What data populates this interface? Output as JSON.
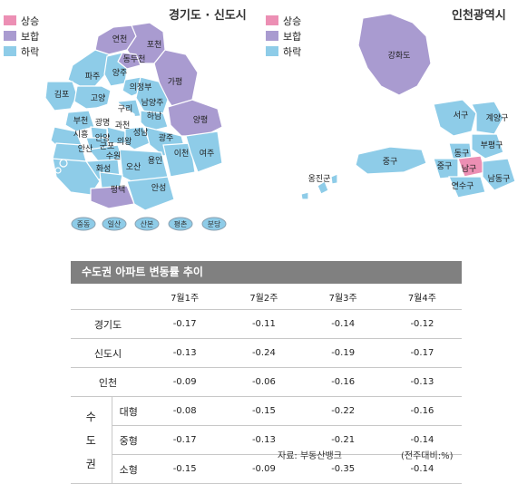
{
  "legend": {
    "items": [
      {
        "label": "상승",
        "color": "#ec8fb4"
      },
      {
        "label": "보합",
        "color": "#a99bd0"
      },
      {
        "label": "하락",
        "color": "#8ecce8"
      }
    ]
  },
  "left_map": {
    "title": "경기도 · 신도시",
    "region_labels": [
      "연천",
      "포천",
      "동두천",
      "양주",
      "파주",
      "의정부",
      "가평",
      "김포",
      "고양",
      "남양주",
      "구리",
      "하남",
      "양평",
      "부천",
      "광명",
      "과천",
      "시흥",
      "안양",
      "의왕",
      "성남",
      "광주",
      "안산",
      "군포",
      "수원",
      "용인",
      "이천",
      "여주",
      "화성",
      "오산",
      "평택",
      "안성"
    ],
    "new_towns": [
      "중동",
      "일산",
      "산본",
      "평촌",
      "분당"
    ]
  },
  "right_map": {
    "title": "인천광역시",
    "region_labels": [
      "강화도",
      "서구",
      "계양구",
      "부평구",
      "동구",
      "중구",
      "남구",
      "옹진군",
      "중구",
      "연수구",
      "남동구"
    ]
  },
  "table": {
    "title": "수도권 아파트 변동률 추이",
    "columns": [
      "7월1주",
      "7월2주",
      "7월3주",
      "7월4주"
    ],
    "rows": [
      {
        "label": "경기도",
        "values": [
          "-0.17",
          "-0.11",
          "-0.14",
          "-0.12"
        ]
      },
      {
        "label": "신도시",
        "values": [
          "-0.13",
          "-0.24",
          "-0.19",
          "-0.17"
        ]
      },
      {
        "label": "인천",
        "values": [
          "-0.09",
          "-0.06",
          "-0.16",
          "-0.13"
        ]
      }
    ],
    "group_chars": [
      "수",
      "도",
      "권"
    ],
    "group_rows": [
      {
        "label": "대형",
        "values": [
          "-0.08",
          "-0.15",
          "-0.22",
          "-0.16"
        ]
      },
      {
        "label": "중형",
        "values": [
          "-0.17",
          "-0.13",
          "-0.21",
          "-0.14"
        ]
      },
      {
        "label": "소형",
        "values": [
          "-0.15",
          "-0.09",
          "-0.35",
          "-0.14"
        ]
      }
    ],
    "source": "자료: 부동산뱅크",
    "unit": "(전주대비:%)"
  }
}
